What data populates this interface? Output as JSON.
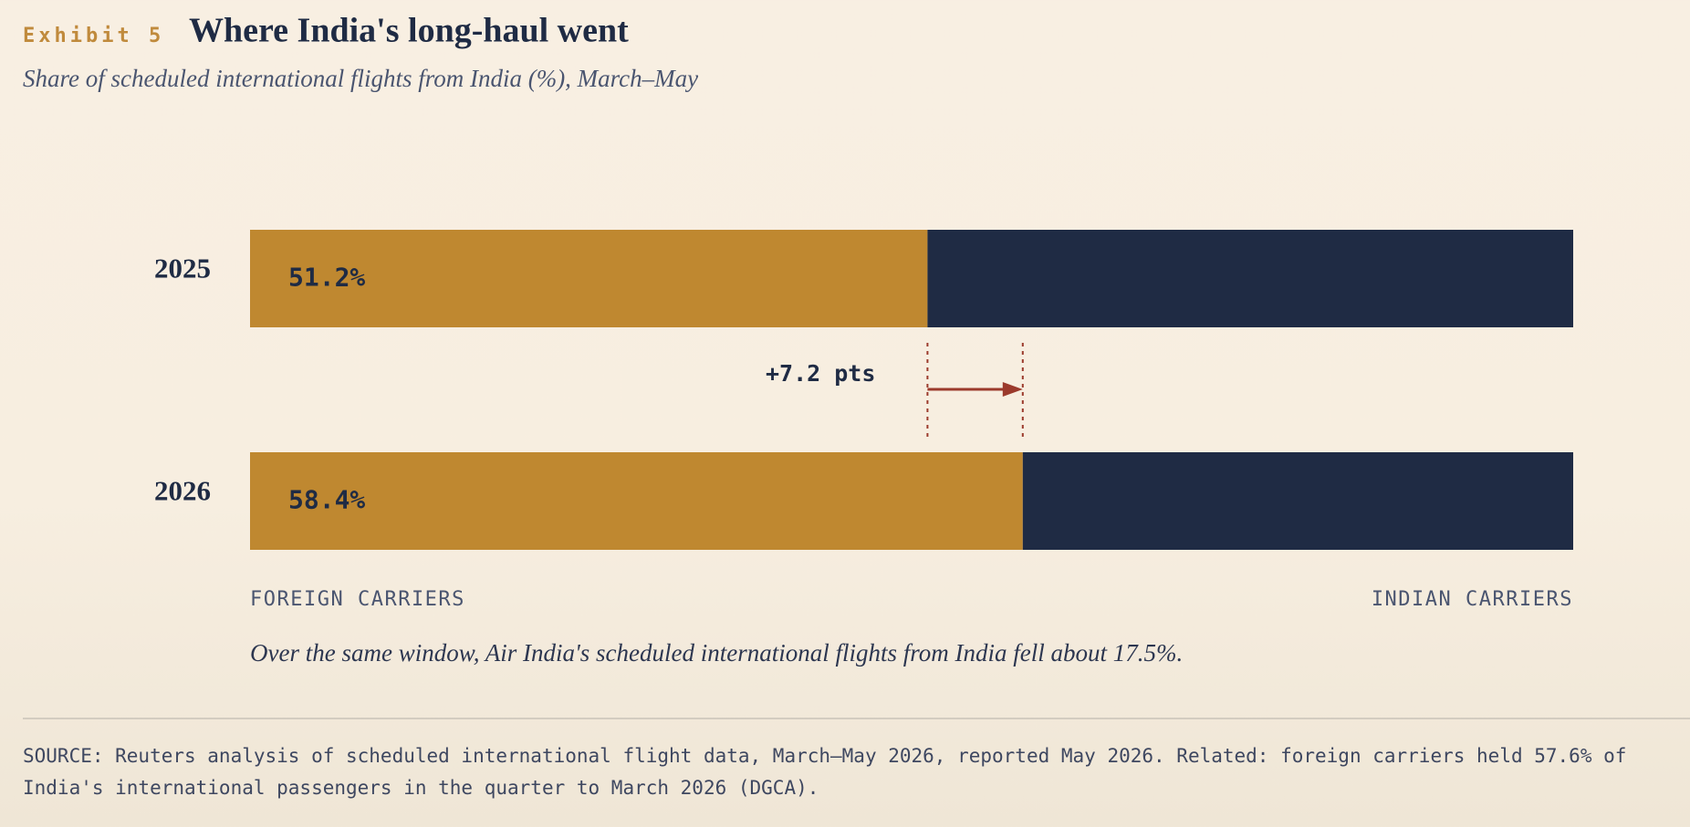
{
  "exhibit_label": "Exhibit 5",
  "chart_data": {
    "type": "stacked_bar_horizontal",
    "title": "Where India's long-haul went",
    "subtitle": "Share of scheduled international flights from India (%), March–May",
    "categories": [
      "2025",
      "2026"
    ],
    "series": [
      {
        "name": "FOREIGN CARRIERS",
        "color": "#bf8830",
        "values": [
          51.2,
          58.4
        ],
        "value_labels": [
          "51.2%",
          "58.4%"
        ]
      },
      {
        "name": "INDIAN CARRIERS",
        "color": "#1f2b44",
        "values": [
          48.8,
          41.6
        ]
      }
    ],
    "xlim": [
      0,
      100
    ],
    "annotation": "+7.2 pts",
    "note": "Over the same window, Air India's scheduled international flights from India fell about 17.5%.",
    "source": "SOURCE: Reuters analysis of scheduled international flight data, March–May 2026, reported May 2026. Related: foreign carriers held 57.6% of India's international passengers in the quarter to March 2026 (DGCA)."
  }
}
